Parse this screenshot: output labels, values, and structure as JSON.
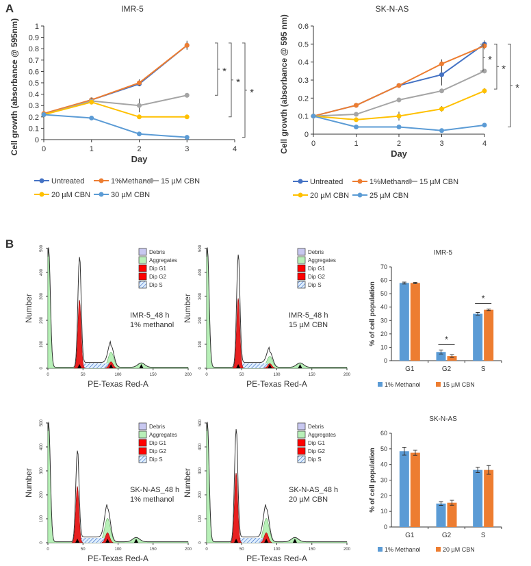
{
  "panel_labels": [
    "A",
    "B"
  ],
  "chart_data": [
    {
      "type": "line",
      "title": "IMR-5",
      "xlabel": "Day",
      "ylabel": "Cell growth (absorbance @ 595nm)",
      "xlim": [
        0,
        4
      ],
      "ylim": [
        0,
        1
      ],
      "xticks": [
        "0",
        "1",
        "2",
        "3",
        "4"
      ],
      "yticks": [
        "0",
        "0.1",
        "0.2",
        "0.3",
        "0.4",
        "0.5",
        "0.6",
        "0.7",
        "0.8",
        "0.9",
        "1"
      ],
      "x": [
        0,
        1,
        2,
        3
      ],
      "series": [
        {
          "name": "Untreated",
          "color": "#4472c4",
          "values": [
            0.22,
            0.35,
            0.49,
            0.83
          ],
          "err": [
            0.01,
            0.02,
            0.02,
            0.03
          ]
        },
        {
          "name": "1%Methanol",
          "color": "#ed7d31",
          "values": [
            0.23,
            0.35,
            0.5,
            0.83
          ],
          "err": [
            0.01,
            0.02,
            0.03,
            0.04
          ]
        },
        {
          "name": "15 µM CBN",
          "color": "#a5a5a5",
          "values": [
            0.22,
            0.34,
            0.3,
            0.39
          ],
          "err": [
            0.01,
            0.03,
            0.06,
            0.02
          ]
        },
        {
          "name": "20 µM CBN",
          "color": "#ffc000",
          "values": [
            0.22,
            0.33,
            0.2,
            0.2
          ],
          "err": [
            0.01,
            0.02,
            0.01,
            0.01
          ]
        },
        {
          "name": "30 µM CBN",
          "color": "#5b9bd5",
          "values": [
            0.22,
            0.19,
            0.05,
            0.02
          ],
          "err": [
            0.01,
            0.01,
            0.01,
            0.01
          ]
        }
      ],
      "significance": [
        {
          "from": 0.85,
          "to": 0.39,
          "label": "*"
        },
        {
          "from": 0.85,
          "to": 0.2,
          "label": "*"
        },
        {
          "from": 0.85,
          "to": 0.02,
          "label": "*"
        }
      ],
      "legend": "bottom"
    },
    {
      "type": "line",
      "title": "SK-N-AS",
      "xlabel": "Day",
      "ylabel": "Cell growth (absorbance @ 595 nm)",
      "xlim": [
        0,
        4
      ],
      "ylim": [
        0,
        0.6
      ],
      "xticks": [
        "0",
        "1",
        "2",
        "3",
        "4"
      ],
      "yticks": [
        "0",
        "0.1",
        "0.2",
        "0.3",
        "0.4",
        "0.5",
        "0.6"
      ],
      "x": [
        0,
        1,
        2,
        3,
        4
      ],
      "series": [
        {
          "name": "Untreated",
          "color": "#4472c4",
          "values": [
            0.1,
            0.16,
            0.27,
            0.33,
            0.5
          ],
          "err": [
            0.005,
            0.01,
            0.01,
            0.06,
            0.02
          ]
        },
        {
          "name": "1%Methanol",
          "color": "#ed7d31",
          "values": [
            0.1,
            0.16,
            0.27,
            0.39,
            0.49
          ],
          "err": [
            0.005,
            0.01,
            0.01,
            0.025,
            0.02
          ]
        },
        {
          "name": "15 µM CBN",
          "color": "#a5a5a5",
          "values": [
            0.1,
            0.11,
            0.19,
            0.24,
            0.35
          ],
          "err": [
            0.005,
            0.005,
            0.005,
            0.005,
            0.01
          ]
        },
        {
          "name": "20 µM CBN",
          "color": "#ffc000",
          "values": [
            0.1,
            0.08,
            0.1,
            0.14,
            0.24
          ],
          "err": [
            0.005,
            0.005,
            0.025,
            0.015,
            0.015
          ]
        },
        {
          "name": "25 µM CBN",
          "color": "#5b9bd5",
          "values": [
            0.1,
            0.04,
            0.04,
            0.02,
            0.05
          ],
          "err": [
            0.005,
            0.005,
            0.01,
            0.005,
            0.005
          ]
        }
      ],
      "significance": [
        {
          "from": 0.5,
          "to": 0.35,
          "label": "*"
        },
        {
          "from": 0.5,
          "to": 0.25,
          "label": "*"
        },
        {
          "from": 0.5,
          "to": 0.04,
          "label": "*"
        }
      ],
      "legend": "bottom"
    },
    {
      "type": "bar",
      "title": "IMR-5",
      "ylabel": "% of cell population",
      "ylim": [
        0,
        70
      ],
      "yticks": [
        "0",
        "10",
        "20",
        "30",
        "40",
        "50",
        "60",
        "70"
      ],
      "categories": [
        "G1",
        "G2",
        "S"
      ],
      "series": [
        {
          "name": "1% Methanol",
          "color": "#5b9bd5",
          "values": [
            58,
            6.5,
            35
          ],
          "err": [
            0.7,
            1.5,
            1
          ]
        },
        {
          "name": "15 µM CBN",
          "color": "#ed7d31",
          "values": [
            58,
            3.5,
            38
          ],
          "err": [
            0.5,
            1,
            0.6
          ]
        }
      ],
      "significance": [
        {
          "category": "G2",
          "label": "*"
        },
        {
          "category": "S",
          "label": "*"
        }
      ],
      "legend": "bottom"
    },
    {
      "type": "bar",
      "title": "SK-N-AS",
      "ylabel": "% of cell population",
      "ylim": [
        0,
        60
      ],
      "yticks": [
        "0",
        "10",
        "20",
        "30",
        "40",
        "50",
        "60"
      ],
      "categories": [
        "G1",
        "G2",
        "S"
      ],
      "series": [
        {
          "name": "1% Methanol",
          "color": "#5b9bd5",
          "values": [
            48.5,
            15,
            36.5
          ],
          "err": [
            2.5,
            1.2,
            1.7
          ]
        },
        {
          "name": "20 µM CBN",
          "color": "#ed7d31",
          "values": [
            47.5,
            15.5,
            36.5
          ],
          "err": [
            1.6,
            1.6,
            2.8
          ]
        }
      ],
      "legend": "bottom"
    }
  ],
  "histograms": [
    {
      "ylabel": "Number",
      "xlabel": "PE-Texas Red-A",
      "xticks": [
        "0",
        "50",
        "100",
        "150",
        "200"
      ],
      "yticks": [
        "0",
        "100",
        "200",
        "300",
        "400",
        "500"
      ],
      "sample": "IMR-5_48 h",
      "treatment": "1% methanol",
      "g1_peak": 45,
      "g1_height": 460,
      "g2_peak": 90,
      "g2_height": 90
    },
    {
      "ylabel": "Number",
      "xlabel": "PE-Texas Red-A",
      "xticks": [
        "0",
        "50",
        "100",
        "150",
        "200"
      ],
      "yticks": [
        "0",
        "100",
        "200",
        "300",
        "400",
        "500"
      ],
      "sample": "IMR-5_48 h",
      "treatment": "15 µM CBN",
      "g1_peak": 45,
      "g1_height": 470,
      "g2_peak": 90,
      "g2_height": 65
    },
    {
      "ylabel": "Number",
      "xlabel": "PE-Texas Red-A",
      "xticks": [
        "0",
        "50",
        "100",
        "150",
        "200"
      ],
      "yticks": [
        "0",
        "100",
        "200",
        "300",
        "400",
        "500"
      ],
      "sample": "SK-N-AS_48 h",
      "treatment": "1% methanol",
      "g1_peak": 42,
      "g1_height": 380,
      "g2_peak": 85,
      "g2_height": 140
    },
    {
      "ylabel": "Number",
      "xlabel": "PE-Texas Red-A",
      "xticks": [
        "0",
        "50",
        "100",
        "150",
        "200"
      ],
      "yticks": [
        "0",
        "100",
        "200",
        "300",
        "400",
        "500"
      ],
      "sample": "SK-N-AS_48 h",
      "treatment": "20 µM CBN",
      "g1_peak": 42,
      "g1_height": 470,
      "g2_peak": 85,
      "g2_height": 140
    }
  ],
  "histogram_legend": [
    {
      "label": "Debris",
      "color": "#c8c8f0"
    },
    {
      "label": "Aggregates",
      "color": "#b8f0b8"
    },
    {
      "label": "Dip G1",
      "color": "#ff0000"
    },
    {
      "label": "Dip G2",
      "color": "#ff0000"
    },
    {
      "label": "Dip S",
      "color": "hatch"
    }
  ]
}
